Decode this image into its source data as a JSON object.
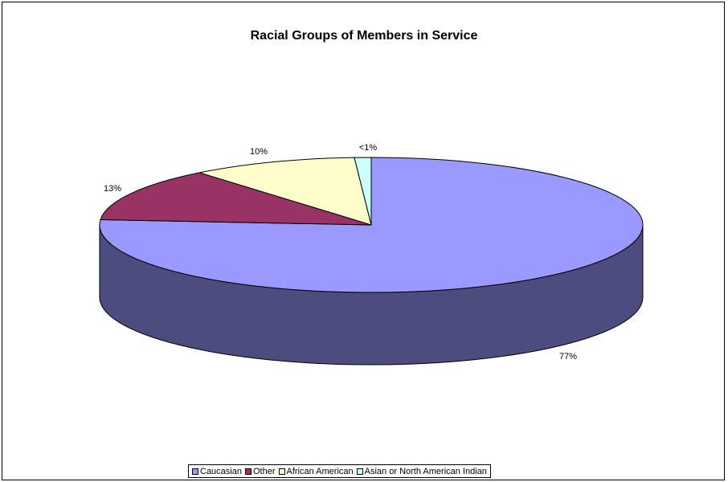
{
  "chart_data": {
    "type": "pie",
    "title": "Racial Groups of Members in Service",
    "categories": [
      "Caucasian",
      "Other",
      "African American",
      "Asian or North American Indian"
    ],
    "values": [
      77,
      13,
      10,
      1
    ],
    "data_labels": [
      "77%",
      "13%",
      "10%",
      "<1%"
    ],
    "colors": [
      "#9999FF",
      "#993366",
      "#FFFFCC",
      "#CCFFFF"
    ],
    "side_colors": [
      "#4C4C7F",
      "#4C1933",
      "#7F7F66",
      "#667F7F"
    ],
    "style": "3d",
    "legend_position": "bottom"
  }
}
